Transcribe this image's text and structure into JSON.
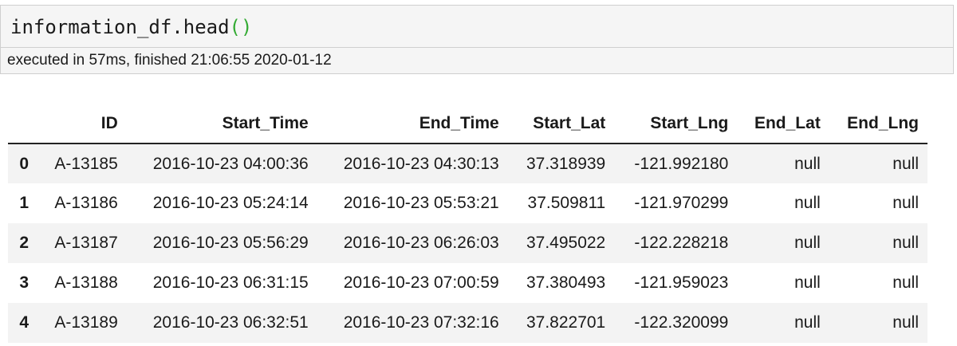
{
  "cell": {
    "code_name": "information_df.head",
    "code_open_paren": "(",
    "code_close_paren": ")",
    "exec_status": "executed in 57ms, finished 21:06:55 2020-01-12"
  },
  "table": {
    "index_header": "",
    "columns": [
      "ID",
      "Start_Time",
      "End_Time",
      "Start_Lat",
      "Start_Lng",
      "End_Lat",
      "End_Lng"
    ],
    "rows": [
      {
        "index": "0",
        "cells": [
          "A-13185",
          "2016-10-23 04:00:36",
          "2016-10-23 04:30:13",
          "37.318939",
          "-121.992180",
          "null",
          "null"
        ]
      },
      {
        "index": "1",
        "cells": [
          "A-13186",
          "2016-10-23 05:24:14",
          "2016-10-23 05:53:21",
          "37.509811",
          "-121.970299",
          "null",
          "null"
        ]
      },
      {
        "index": "2",
        "cells": [
          "A-13187",
          "2016-10-23 05:56:29",
          "2016-10-23 06:26:03",
          "37.495022",
          "-122.228218",
          "null",
          "null"
        ]
      },
      {
        "index": "3",
        "cells": [
          "A-13188",
          "2016-10-23 06:31:15",
          "2016-10-23 07:00:59",
          "37.380493",
          "-121.959023",
          "null",
          "null"
        ]
      },
      {
        "index": "4",
        "cells": [
          "A-13189",
          "2016-10-23 06:32:51",
          "2016-10-23 07:32:16",
          "37.822701",
          "-122.320099",
          "null",
          "null"
        ]
      }
    ]
  },
  "colors": {
    "cell_background": "#f5f5f5",
    "cell_border": "#cfcfcf",
    "paren_green": "#33aa33",
    "row_stripe": "#f3f3f3"
  }
}
